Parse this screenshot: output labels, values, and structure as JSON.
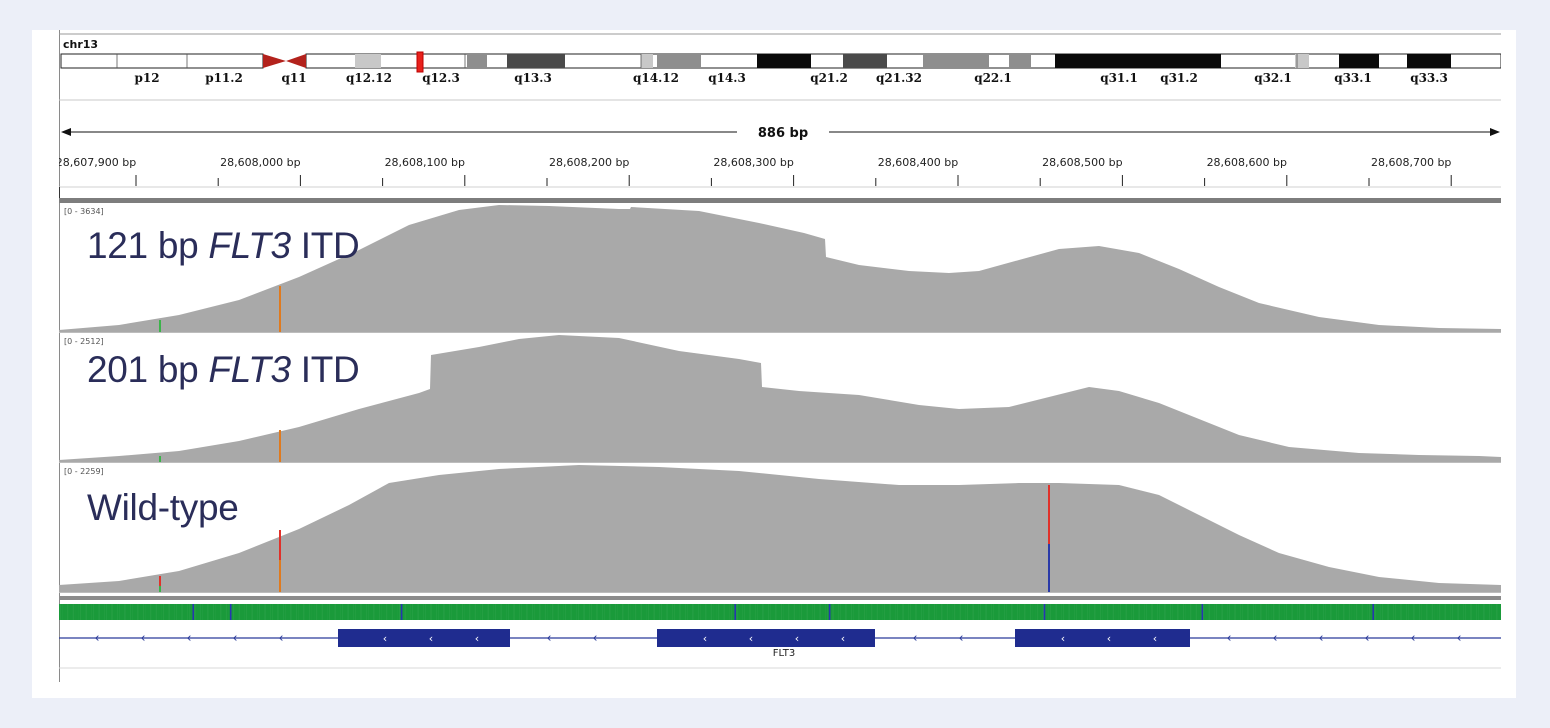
{
  "chromosome": {
    "name": "chr13",
    "bands": [
      {
        "label": "p12",
        "stain": "white"
      },
      {
        "label": "p11.2",
        "stain": "white"
      },
      {
        "label": "q11",
        "stain": "centromere"
      },
      {
        "label": "q12.12",
        "stain": "light"
      },
      {
        "label": "q12.3",
        "stain": "white"
      },
      {
        "label": "q13.3",
        "stain": "dark"
      },
      {
        "label": "q14.12",
        "stain": "white"
      },
      {
        "label": "q14.3",
        "stain": "mid"
      },
      {
        "label": "q21.2",
        "stain": "black"
      },
      {
        "label": "q21.32",
        "stain": "dark"
      },
      {
        "label": "q22.1",
        "stain": "mid"
      },
      {
        "label": "q31.1",
        "stain": "black"
      },
      {
        "label": "q31.2",
        "stain": "black"
      },
      {
        "label": "q32.1",
        "stain": "white"
      },
      {
        "label": "q33.1",
        "stain": "black"
      },
      {
        "label": "q33.3",
        "stain": "black"
      }
    ]
  },
  "ruler": {
    "span_label": "886 bp",
    "ticks": [
      "28,607,900 bp",
      "28,608,000 bp",
      "28,608,100 bp",
      "28,608,200 bp",
      "28,608,300 bp",
      "28,608,400 bp",
      "28,608,500 bp",
      "28,608,600 bp",
      "28,608,700 bp"
    ]
  },
  "tracks": [
    {
      "label_num": "121 bp ",
      "label_gene": "FLT3",
      "label_suffix": " ITD",
      "range": "[0 - 3634]"
    },
    {
      "label_num": "201 bp ",
      "label_gene": "FLT3",
      "label_suffix": " ITD",
      "range": "[0 - 2512]"
    },
    {
      "label_plain": "Wild-type",
      "range": "[0 - 2259]"
    }
  ],
  "gene": {
    "name": "FLT3",
    "strand_arrow": "‹"
  },
  "colors": {
    "coverage": "#a9a9a9",
    "gene": "#1f2c8f",
    "track_label": "#2a2d59",
    "background": "#eceff8",
    "centromere": "#b3221c",
    "current_region": "#e8211c"
  }
}
